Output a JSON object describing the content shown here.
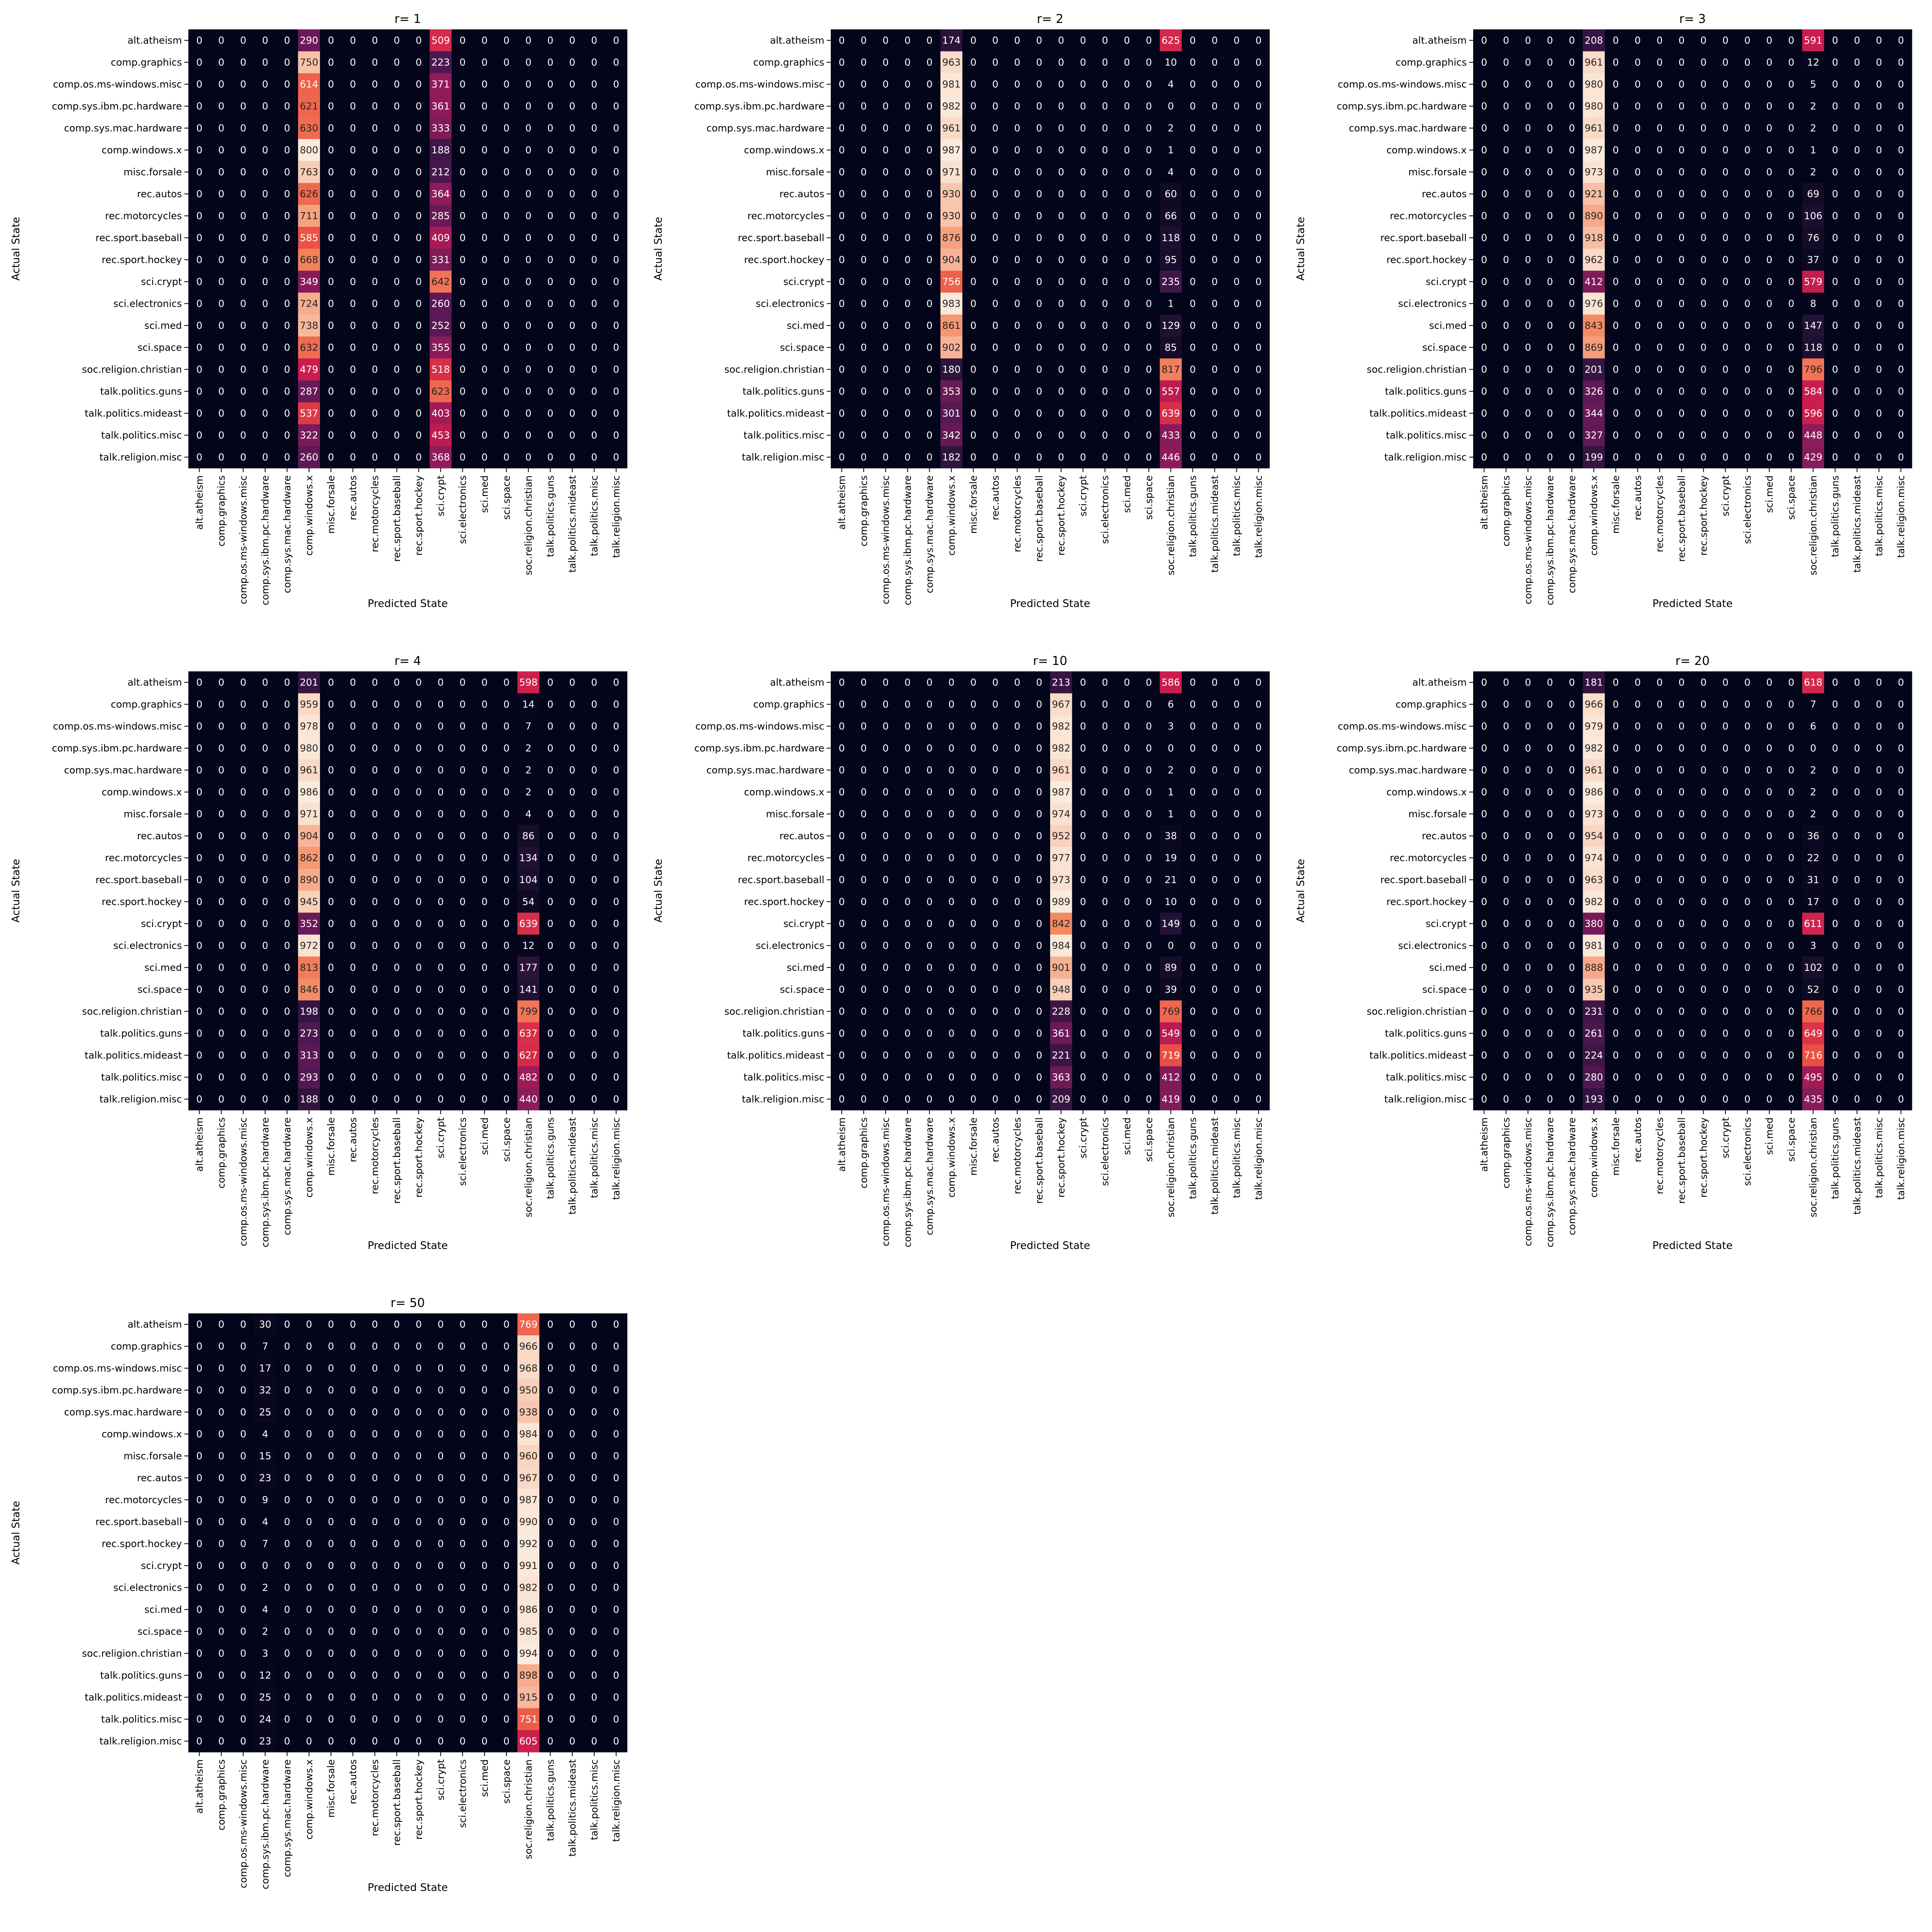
{
  "categories": [
    "alt.atheism",
    "comp.graphics",
    "comp.os.ms-windows.misc",
    "comp.sys.ibm.pc.hardware",
    "comp.sys.mac.hardware",
    "comp.windows.x",
    "misc.forsale",
    "rec.autos",
    "rec.motorcycles",
    "rec.sport.baseball",
    "rec.sport.hockey",
    "sci.crypt",
    "sci.electronics",
    "sci.med",
    "sci.space",
    "soc.religion.christian",
    "talk.politics.guns",
    "talk.politics.mideast",
    "talk.politics.misc",
    "talk.religion.misc"
  ],
  "chart_data": [
    {
      "type": "heatmap",
      "title": "r= 1",
      "xlabel": "Predicted State",
      "ylabel": "Actual State",
      "cols": [
        5,
        11
      ],
      "values": [
        [
          290,
          509
        ],
        [
          750,
          223
        ],
        [
          614,
          371
        ],
        [
          621,
          361
        ],
        [
          630,
          333
        ],
        [
          800,
          188
        ],
        [
          763,
          212
        ],
        [
          626,
          364
        ],
        [
          711,
          285
        ],
        [
          585,
          409
        ],
        [
          668,
          331
        ],
        [
          349,
          642
        ],
        [
          724,
          260
        ],
        [
          738,
          252
        ],
        [
          632,
          355
        ],
        [
          479,
          518
        ],
        [
          287,
          623
        ],
        [
          537,
          403
        ],
        [
          322,
          453
        ],
        [
          260,
          368
        ]
      ]
    },
    {
      "type": "heatmap",
      "title": "r= 2",
      "xlabel": "Predicted State",
      "ylabel": "Actual State",
      "cols": [
        5,
        15
      ],
      "values": [
        [
          174,
          625
        ],
        [
          963,
          10
        ],
        [
          981,
          4
        ],
        [
          982,
          0
        ],
        [
          961,
          2
        ],
        [
          987,
          1
        ],
        [
          971,
          4
        ],
        [
          930,
          60
        ],
        [
          930,
          66
        ],
        [
          876,
          118
        ],
        [
          904,
          95
        ],
        [
          756,
          235
        ],
        [
          983,
          1
        ],
        [
          861,
          129
        ],
        [
          902,
          85
        ],
        [
          180,
          817
        ],
        [
          353,
          557
        ],
        [
          301,
          639
        ],
        [
          342,
          433
        ],
        [
          182,
          446
        ]
      ]
    },
    {
      "type": "heatmap",
      "title": "r= 3",
      "xlabel": "Predicted State",
      "ylabel": "Actual State",
      "cols": [
        5,
        15
      ],
      "values": [
        [
          208,
          591
        ],
        [
          961,
          12
        ],
        [
          980,
          5
        ],
        [
          980,
          2
        ],
        [
          961,
          2
        ],
        [
          987,
          1
        ],
        [
          973,
          2
        ],
        [
          921,
          69
        ],
        [
          890,
          106
        ],
        [
          918,
          76
        ],
        [
          962,
          37
        ],
        [
          412,
          579
        ],
        [
          976,
          8
        ],
        [
          843,
          147
        ],
        [
          869,
          118
        ],
        [
          201,
          796
        ],
        [
          326,
          584
        ],
        [
          344,
          596
        ],
        [
          327,
          448
        ],
        [
          199,
          429
        ]
      ]
    },
    {
      "type": "heatmap",
      "title": "r= 4",
      "xlabel": "Predicted State",
      "ylabel": "Actual State",
      "cols": [
        5,
        15
      ],
      "values": [
        [
          201,
          598
        ],
        [
          959,
          14
        ],
        [
          978,
          7
        ],
        [
          980,
          2
        ],
        [
          961,
          2
        ],
        [
          986,
          2
        ],
        [
          971,
          4
        ],
        [
          904,
          86
        ],
        [
          862,
          134
        ],
        [
          890,
          104
        ],
        [
          945,
          54
        ],
        [
          352,
          639
        ],
        [
          972,
          12
        ],
        [
          813,
          177
        ],
        [
          846,
          141
        ],
        [
          198,
          799
        ],
        [
          273,
          637
        ],
        [
          313,
          627
        ],
        [
          293,
          482
        ],
        [
          188,
          440
        ]
      ]
    },
    {
      "type": "heatmap",
      "title": "r= 10",
      "xlabel": "Predicted State",
      "ylabel": "Actual State",
      "cols": [
        10,
        15
      ],
      "values": [
        [
          213,
          586
        ],
        [
          967,
          6
        ],
        [
          982,
          3
        ],
        [
          982,
          0
        ],
        [
          961,
          2
        ],
        [
          987,
          1
        ],
        [
          974,
          1
        ],
        [
          952,
          38
        ],
        [
          977,
          19
        ],
        [
          973,
          21
        ],
        [
          989,
          10
        ],
        [
          842,
          149
        ],
        [
          984,
          0
        ],
        [
          901,
          89
        ],
        [
          948,
          39
        ],
        [
          228,
          769
        ],
        [
          361,
          549
        ],
        [
          221,
          719
        ],
        [
          363,
          412
        ],
        [
          209,
          419
        ]
      ]
    },
    {
      "type": "heatmap",
      "title": "r= 20",
      "xlabel": "Predicted State",
      "ylabel": "Actual State",
      "cols": [
        5,
        15
      ],
      "values": [
        [
          181,
          618
        ],
        [
          966,
          7
        ],
        [
          979,
          6
        ],
        [
          982,
          0
        ],
        [
          961,
          2
        ],
        [
          986,
          2
        ],
        [
          973,
          2
        ],
        [
          954,
          36
        ],
        [
          974,
          22
        ],
        [
          963,
          31
        ],
        [
          982,
          17
        ],
        [
          380,
          611
        ],
        [
          981,
          3
        ],
        [
          888,
          102
        ],
        [
          935,
          52
        ],
        [
          231,
          766
        ],
        [
          261,
          649
        ],
        [
          224,
          716
        ],
        [
          280,
          495
        ],
        [
          193,
          435
        ]
      ]
    },
    {
      "type": "heatmap",
      "title": "r= 50",
      "xlabel": "Predicted State",
      "ylabel": "Actual State",
      "cols": [
        3,
        15
      ],
      "values": [
        [
          30,
          769
        ],
        [
          7,
          966
        ],
        [
          17,
          968
        ],
        [
          32,
          950
        ],
        [
          25,
          938
        ],
        [
          4,
          984
        ],
        [
          15,
          960
        ],
        [
          23,
          967
        ],
        [
          9,
          987
        ],
        [
          4,
          990
        ],
        [
          7,
          992
        ],
        [
          0,
          991
        ],
        [
          2,
          982
        ],
        [
          4,
          986
        ],
        [
          2,
          985
        ],
        [
          3,
          994
        ],
        [
          12,
          898
        ],
        [
          25,
          915
        ],
        [
          24,
          751
        ],
        [
          23,
          605
        ]
      ]
    }
  ]
}
